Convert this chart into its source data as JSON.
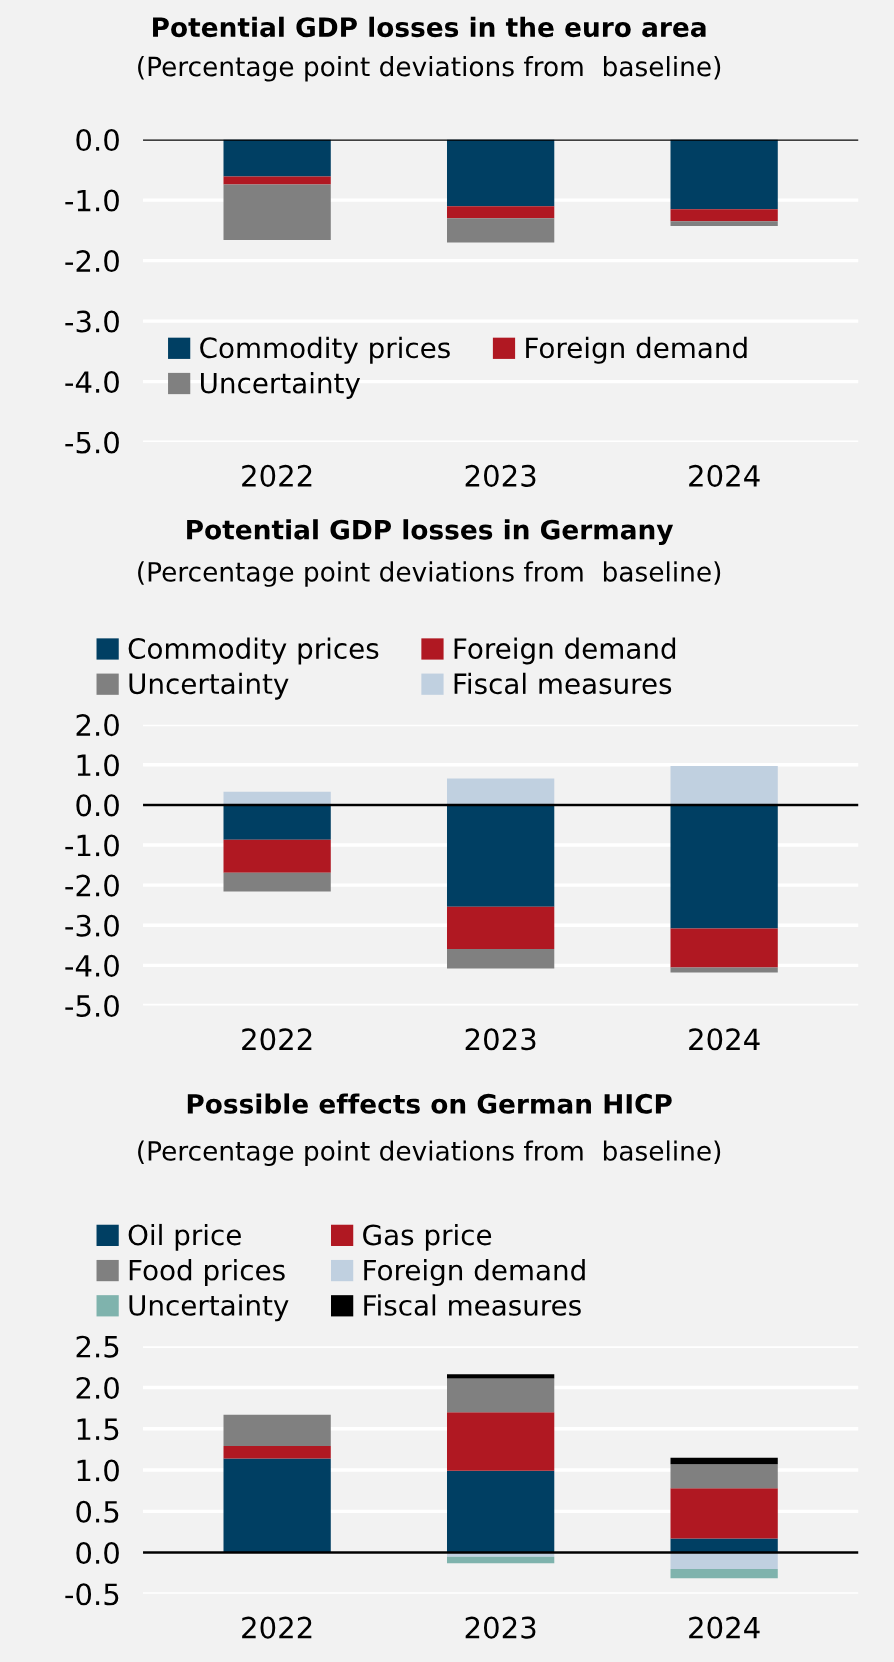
{
  "chart_data": [
    {
      "type": "bar",
      "stacked": true,
      "title": "Potential GDP losses in the euro area",
      "subtitle": "(Percentage point deviations from  baseline)",
      "categories": [
        "2022",
        "2023",
        "2024"
      ],
      "series": [
        {
          "name": "Commodity prices",
          "color": "#003f63",
          "values": [
            -0.61,
            -1.1,
            -1.15
          ]
        },
        {
          "name": "Foreign demand",
          "color": "#b01822",
          "values": [
            -0.13,
            -0.2,
            -0.2
          ]
        },
        {
          "name": "Uncertainty",
          "color": "#808080",
          "values": [
            -0.92,
            -0.4,
            -0.08
          ]
        }
      ],
      "ylim": [
        -5.0,
        0.0
      ],
      "yticks": [
        {
          "value": 0,
          "label": "0.0"
        },
        {
          "value": -1,
          "label": "-1.0"
        },
        {
          "value": -2,
          "label": "-2.0"
        },
        {
          "value": -3,
          "label": "-3.0"
        },
        {
          "value": -4,
          "label": "-4.0"
        },
        {
          "value": -5,
          "label": "-5.0"
        }
      ],
      "grid": "y",
      "legend": "bottom"
    },
    {
      "type": "bar",
      "stacked": true,
      "title": "Potential GDP losses in Germany",
      "subtitle": "(Percentage point deviations from  baseline)",
      "categories": [
        "2022",
        "2023",
        "2024"
      ],
      "series": [
        {
          "name": "Commodity prices",
          "color": "#003f63",
          "values": [
            -0.87,
            -2.54,
            -3.08
          ]
        },
        {
          "name": "Foreign demand",
          "color": "#b01822",
          "values": [
            -0.82,
            -1.05,
            -0.97
          ]
        },
        {
          "name": "Uncertainty",
          "color": "#808080",
          "values": [
            -0.47,
            -0.49,
            -0.13
          ]
        },
        {
          "name": "Fiscal measures",
          "color": "#c0d0e0",
          "values": [
            0.33,
            0.66,
            0.97
          ]
        }
      ],
      "ylim": [
        -5.0,
        2.0
      ],
      "yticks": [
        {
          "value": 2,
          "label": "2.0"
        },
        {
          "value": 1,
          "label": "1.0"
        },
        {
          "value": 0,
          "label": "0.0"
        },
        {
          "value": -1,
          "label": "-1.0"
        },
        {
          "value": -2,
          "label": "-2.0"
        },
        {
          "value": -3,
          "label": "-3.0"
        },
        {
          "value": -4,
          "label": "-4.0"
        },
        {
          "value": -5,
          "label": "-5.0"
        }
      ],
      "grid": "y",
      "legend": "top"
    },
    {
      "type": "bar",
      "stacked": true,
      "title": "Possible effects on German HICP",
      "subtitle": "(Percentage point deviations from  baseline)",
      "categories": [
        "2022",
        "2023",
        "2024"
      ],
      "series": [
        {
          "name": "Oil price",
          "color": "#003f63",
          "values": [
            1.14,
            0.99,
            0.17
          ]
        },
        {
          "name": "Gas price",
          "color": "#b01822",
          "values": [
            0.15,
            0.71,
            0.61
          ]
        },
        {
          "name": "Food prices",
          "color": "#808080",
          "values": [
            0.38,
            0.41,
            0.29
          ]
        },
        {
          "name": "Foreign demand",
          "color": "#c0d0e0",
          "values": [
            null,
            -0.05,
            -0.2
          ]
        },
        {
          "name": "Uncertainty",
          "color": "#7fb3ad",
          "values": [
            null,
            -0.08,
            -0.11
          ]
        },
        {
          "name": "Fiscal measures",
          "color": "#000000",
          "values": [
            null,
            0.05,
            0.08
          ]
        }
      ],
      "ylim": [
        -0.5,
        2.5
      ],
      "yticks": [
        {
          "value": 2.5,
          "label": "2.5"
        },
        {
          "value": 2,
          "label": "2.0"
        },
        {
          "value": 1.5,
          "label": "1.5"
        },
        {
          "value": 1,
          "label": "1.0"
        },
        {
          "value": 0.5,
          "label": "0.5"
        },
        {
          "value": 0,
          "label": "0.0"
        },
        {
          "value": -0.5,
          "label": "-0.5"
        }
      ],
      "grid": "y",
      "legend": "top"
    }
  ]
}
